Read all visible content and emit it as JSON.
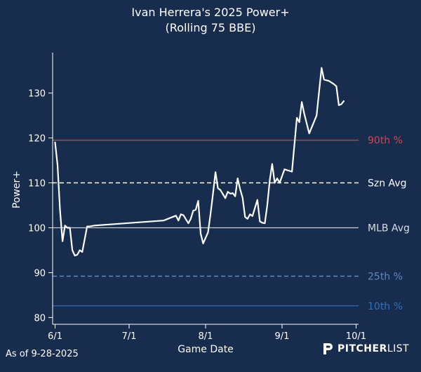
{
  "chart_data": {
    "type": "line",
    "title": "Ivan Herrera's 2025 Power+",
    "subtitle": "(Rolling 75 BBE)",
    "xlabel": "Game Date",
    "ylabel": "Power+",
    "ylim": [
      78.5,
      139
    ],
    "y_ticks": [
      80,
      90,
      100,
      110,
      120,
      130
    ],
    "x_ticks": [
      "6/1",
      "7/1",
      "8/1",
      "9/1",
      "10/1"
    ],
    "xlim": [
      "2025-05-31",
      "2025-10-02"
    ],
    "grid": false,
    "colors": {
      "background": "#182c4d",
      "series": "#ffffff",
      "p90": "#d0464f",
      "szn_avg": "#ffffff",
      "mlb_avg_line": "#c7ccd3",
      "mlb_avg_label": "#d9dce2",
      "p25": "#5e87bf",
      "p10": "#2f6fbf"
    },
    "reference_lines": [
      {
        "label": "90th %",
        "value": 119.5,
        "style": "solid",
        "color_key": "p90"
      },
      {
        "label": "Szn Avg",
        "value": 110.0,
        "style": "dashed",
        "color_key": "szn_avg"
      },
      {
        "label": "MLB Avg",
        "value": 100.0,
        "style": "solid",
        "color_key": "mlb_avg_line"
      },
      {
        "label": "25th %",
        "value": 89.2,
        "style": "dashed",
        "color_key": "p25"
      },
      {
        "label": "10th %",
        "value": 82.6,
        "style": "solid",
        "color_key": "p10"
      }
    ],
    "series": [
      {
        "x": [
          "2025-06-01",
          "2025-06-02",
          "2025-06-03",
          "2025-06-04",
          "2025-06-05",
          "2025-06-06",
          "2025-06-07",
          "2025-06-08",
          "2025-06-09",
          "2025-06-10",
          "2025-06-11",
          "2025-06-12",
          "2025-06-14",
          "2025-06-15",
          "2025-06-17",
          "2025-07-15",
          "2025-07-20",
          "2025-07-21",
          "2025-07-22",
          "2025-07-23",
          "2025-07-25",
          "2025-07-26",
          "2025-07-27",
          "2025-07-28",
          "2025-07-29",
          "2025-07-30",
          "2025-07-31",
          "2025-08-02",
          "2025-08-03",
          "2025-08-04",
          "2025-08-05",
          "2025-08-06",
          "2025-08-07",
          "2025-08-08",
          "2025-08-09",
          "2025-08-10",
          "2025-08-11",
          "2025-08-12",
          "2025-08-13",
          "2025-08-14",
          "2025-08-15",
          "2025-08-16",
          "2025-08-17",
          "2025-08-18",
          "2025-08-19",
          "2025-08-20",
          "2025-08-22",
          "2025-08-23",
          "2025-08-24",
          "2025-08-25",
          "2025-08-26",
          "2025-08-27",
          "2025-08-28",
          "2025-08-29",
          "2025-08-30",
          "2025-08-31",
          "2025-09-02",
          "2025-09-05",
          "2025-09-07",
          "2025-09-08",
          "2025-09-09",
          "2025-09-10",
          "2025-09-12",
          "2025-09-15",
          "2025-09-17",
          "2025-09-18",
          "2025-09-20",
          "2025-09-22",
          "2025-09-23",
          "2025-09-24",
          "2025-09-25",
          "2025-09-26"
        ],
        "values": [
          119,
          114,
          104,
          97,
          100.5,
          100,
          100,
          95,
          93.8,
          94,
          95,
          94.6,
          100.3,
          100.3,
          100.5,
          101.6,
          102.7,
          101.6,
          103,
          102.8,
          101,
          102,
          103.8,
          104,
          106,
          98.7,
          96.5,
          99,
          103,
          107.5,
          112.4,
          108.8,
          108.4,
          107.5,
          106.6,
          108,
          107.6,
          107.7,
          107,
          111,
          108.6,
          106.7,
          102.4,
          102,
          103,
          102.6,
          106.2,
          101.4,
          101.1,
          101,
          105,
          110.5,
          114.2,
          110,
          111,
          110,
          113,
          112.5,
          124.5,
          123.5,
          128,
          125.4,
          121,
          125,
          135.6,
          133,
          132.7,
          132,
          131.5,
          127.3,
          127.5,
          128.2
        ]
      }
    ]
  },
  "footer": {
    "as_of": "As of 9-28-2025",
    "brand_bold": "PITCHER",
    "brand_light": "LIST"
  }
}
